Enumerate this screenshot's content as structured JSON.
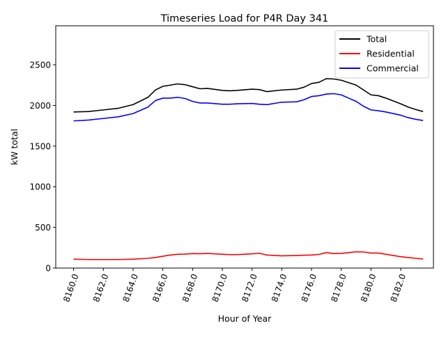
{
  "chart_data": {
    "type": "line",
    "title": "Timeseries Load for P4R   Day 341",
    "xlabel": "Hour of Year",
    "ylabel": "kW total",
    "xlim": [
      8158.8,
      8184.2
    ],
    "ylim": [
      0,
      2980
    ],
    "xticks": [
      8160,
      8162,
      8164,
      8166,
      8168,
      8170,
      8172,
      8174,
      8176,
      8178,
      8180,
      8182
    ],
    "xtick_labels": [
      "8160.0",
      "8162.0",
      "8164.0",
      "8166.0",
      "8168.0",
      "8170.0",
      "8172.0",
      "8174.0",
      "8176.0",
      "8178.0",
      "8180.0",
      "8182.0"
    ],
    "yticks": [
      0,
      500,
      1000,
      1500,
      2000,
      2500
    ],
    "ytick_labels": [
      "0",
      "500",
      "1000",
      "1500",
      "2000",
      "2500"
    ],
    "legend_position": "top-right",
    "x": [
      8160,
      8161,
      8162,
      8163,
      8164,
      8165,
      8165.5,
      8166,
      8166.5,
      8167,
      8167.5,
      8168,
      8168.5,
      8169,
      8170,
      8170.5,
      8171,
      8172,
      8172.5,
      8173,
      8174,
      8175,
      8175.5,
      8176,
      8176.5,
      8177,
      8177.5,
      8178,
      8178.5,
      8179,
      8179.5,
      8180,
      8180.5,
      8181,
      8182,
      8182.5,
      8183,
      8183.5
    ],
    "series": [
      {
        "name": "Total",
        "color": "#000000",
        "values": [
          1920,
          1925,
          1945,
          1965,
          2010,
          2100,
          2190,
          2235,
          2250,
          2265,
          2255,
          2230,
          2205,
          2210,
          2185,
          2180,
          2185,
          2200,
          2195,
          2170,
          2190,
          2200,
          2225,
          2270,
          2285,
          2330,
          2325,
          2310,
          2280,
          2250,
          2190,
          2130,
          2120,
          2090,
          2020,
          1980,
          1950,
          1925
        ]
      },
      {
        "name": "Residential",
        "color": "#ff0000",
        "values": [
          110,
          105,
          105,
          105,
          110,
          120,
          130,
          145,
          160,
          170,
          172,
          178,
          176,
          180,
          170,
          165,
          165,
          175,
          182,
          160,
          150,
          155,
          158,
          160,
          168,
          190,
          178,
          180,
          190,
          200,
          198,
          185,
          185,
          170,
          140,
          130,
          120,
          112
        ]
      },
      {
        "name": "Commercial",
        "color": "#0000ff",
        "values": [
          1810,
          1820,
          1840,
          1860,
          1900,
          1980,
          2060,
          2090,
          2090,
          2100,
          2085,
          2050,
          2030,
          2030,
          2015,
          2015,
          2020,
          2025,
          2015,
          2010,
          2040,
          2045,
          2070,
          2110,
          2120,
          2140,
          2145,
          2130,
          2090,
          2050,
          1990,
          1945,
          1935,
          1920,
          1880,
          1850,
          1830,
          1815
        ]
      }
    ]
  }
}
